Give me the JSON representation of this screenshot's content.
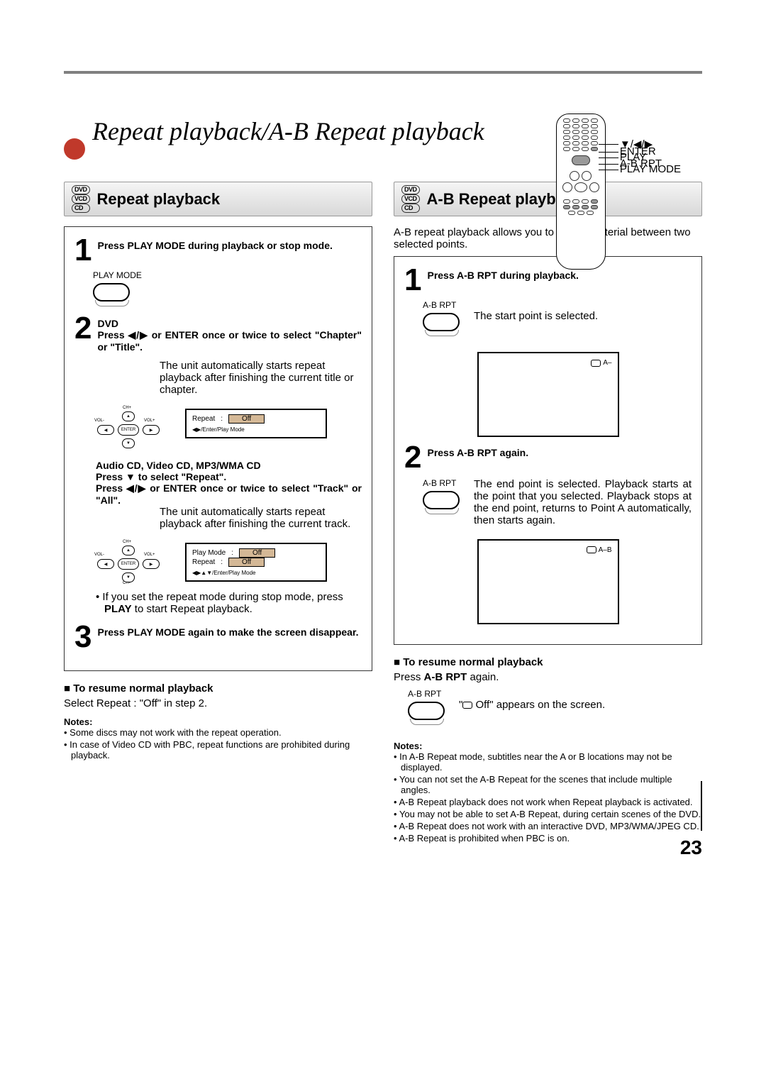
{
  "page_number": "23",
  "main_title": "Repeat playback/A-B Repeat playback",
  "remote_labels": [
    "PLAY MODE",
    "PLAY",
    "A-B RPT",
    "ENTER",
    "▼/◀/▶"
  ],
  "remote_gaps": [
    70,
    4,
    30,
    4,
    10
  ],
  "disc_labels": [
    "DVD",
    "VCD",
    "CD"
  ],
  "colors": {
    "accent_red": "#c0392b",
    "osd_highlight": "#d4b896",
    "header_grad_top": "#f5f5f5",
    "header_grad_bottom": "#d8d8d8",
    "top_rule": "#808080"
  },
  "left": {
    "heading": "Repeat playback",
    "step1": {
      "num": "1",
      "text": "Press PLAY MODE during playback or stop mode.",
      "btn_label": "PLAY MODE"
    },
    "step2": {
      "num": "2",
      "dvd_label": "DVD",
      "text": "Press ◀/▶ or ENTER once or twice to select \"Chapter\" or \"Title\".",
      "note": "The unit automatically starts repeat playback after finishing the current title or chapter.",
      "dpad_labels": {
        "up": "CH+",
        "down": "",
        "left": "VOL-",
        "right": "VOL+",
        "center": "ENTER",
        "left_tri": "◀",
        "right_tri": "▶",
        "up_tri": "▲",
        "down_tri": "▼"
      },
      "osd1": {
        "row1_l": "Repeat",
        "row1_c": ":",
        "row1_r": "Off",
        "hint": "◀▶/Enter/Play Mode"
      },
      "cd_label": "Audio CD, Video CD, MP3/WMA CD",
      "cd_text1": "Press ▼ to select \"Repeat\".",
      "cd_text2": "Press ◀/▶ or ENTER once or twice to select \"Track\" or \"All\".",
      "note2": "The unit automatically starts repeat playback after finishing the current track.",
      "osd2": {
        "row1_l": "Play Mode",
        "row1_r": "Off",
        "row2_l": "Repeat",
        "row2_r": "Off",
        "hint": "◀▶▲▼/Enter/Play Mode"
      }
    },
    "bullet1": "If you set the repeat mode during stop mode, press PLAY to start Repeat playback.",
    "step3": {
      "num": "3",
      "text": "Press PLAY MODE again to make the screen disappear."
    },
    "resume_hdr": "To resume normal playback",
    "resume_text": "Select Repeat : \"Off\" in step 2.",
    "notes_hdr": "Notes:",
    "notes": [
      "Some discs may not work with the repeat operation.",
      "In case of Video CD with PBC, repeat functions are prohibited during playback."
    ]
  },
  "right": {
    "heading": "A-B Repeat playback",
    "intro": "A-B repeat playback allows you to repeat material between two selected points.",
    "step1": {
      "num": "1",
      "text": "Press A-B RPT during playback.",
      "btn_label": "A-B RPT",
      "note": "The start point is selected.",
      "screen_indicator": "A–"
    },
    "step2": {
      "num": "2",
      "text": "Press A-B RPT again.",
      "btn_label": "A-B RPT",
      "note": "The end point is selected. Playback starts at the point that you selected. Playback stops at the end point, returns to Point A automatically, then starts again.",
      "screen_indicator": "A–B"
    },
    "resume_hdr": "To resume normal playback",
    "resume_text_pre": "Press ",
    "resume_text_bold": "A-B RPT",
    "resume_text_post": " again.",
    "resume_btn_label": "A-B RPT",
    "off_text": "\" Off\" appears on the screen.",
    "off_pre": "\"",
    "off_mid": " Off",
    "off_post": "\" appears on the screen.",
    "notes_hdr": "Notes:",
    "notes": [
      "In A-B Repeat mode, subtitles near the A or B locations may not be displayed.",
      "You can not set the A-B Repeat for the scenes that include multiple angles.",
      "A-B Repeat playback does not work when Repeat playback is activated.",
      "You may not be able to set A-B Repeat, during certain scenes of the DVD.",
      "A-B Repeat does not work with an interactive DVD, MP3/WMA/JPEG CD.",
      "A-B Repeat is prohibited when PBC is on."
    ]
  }
}
